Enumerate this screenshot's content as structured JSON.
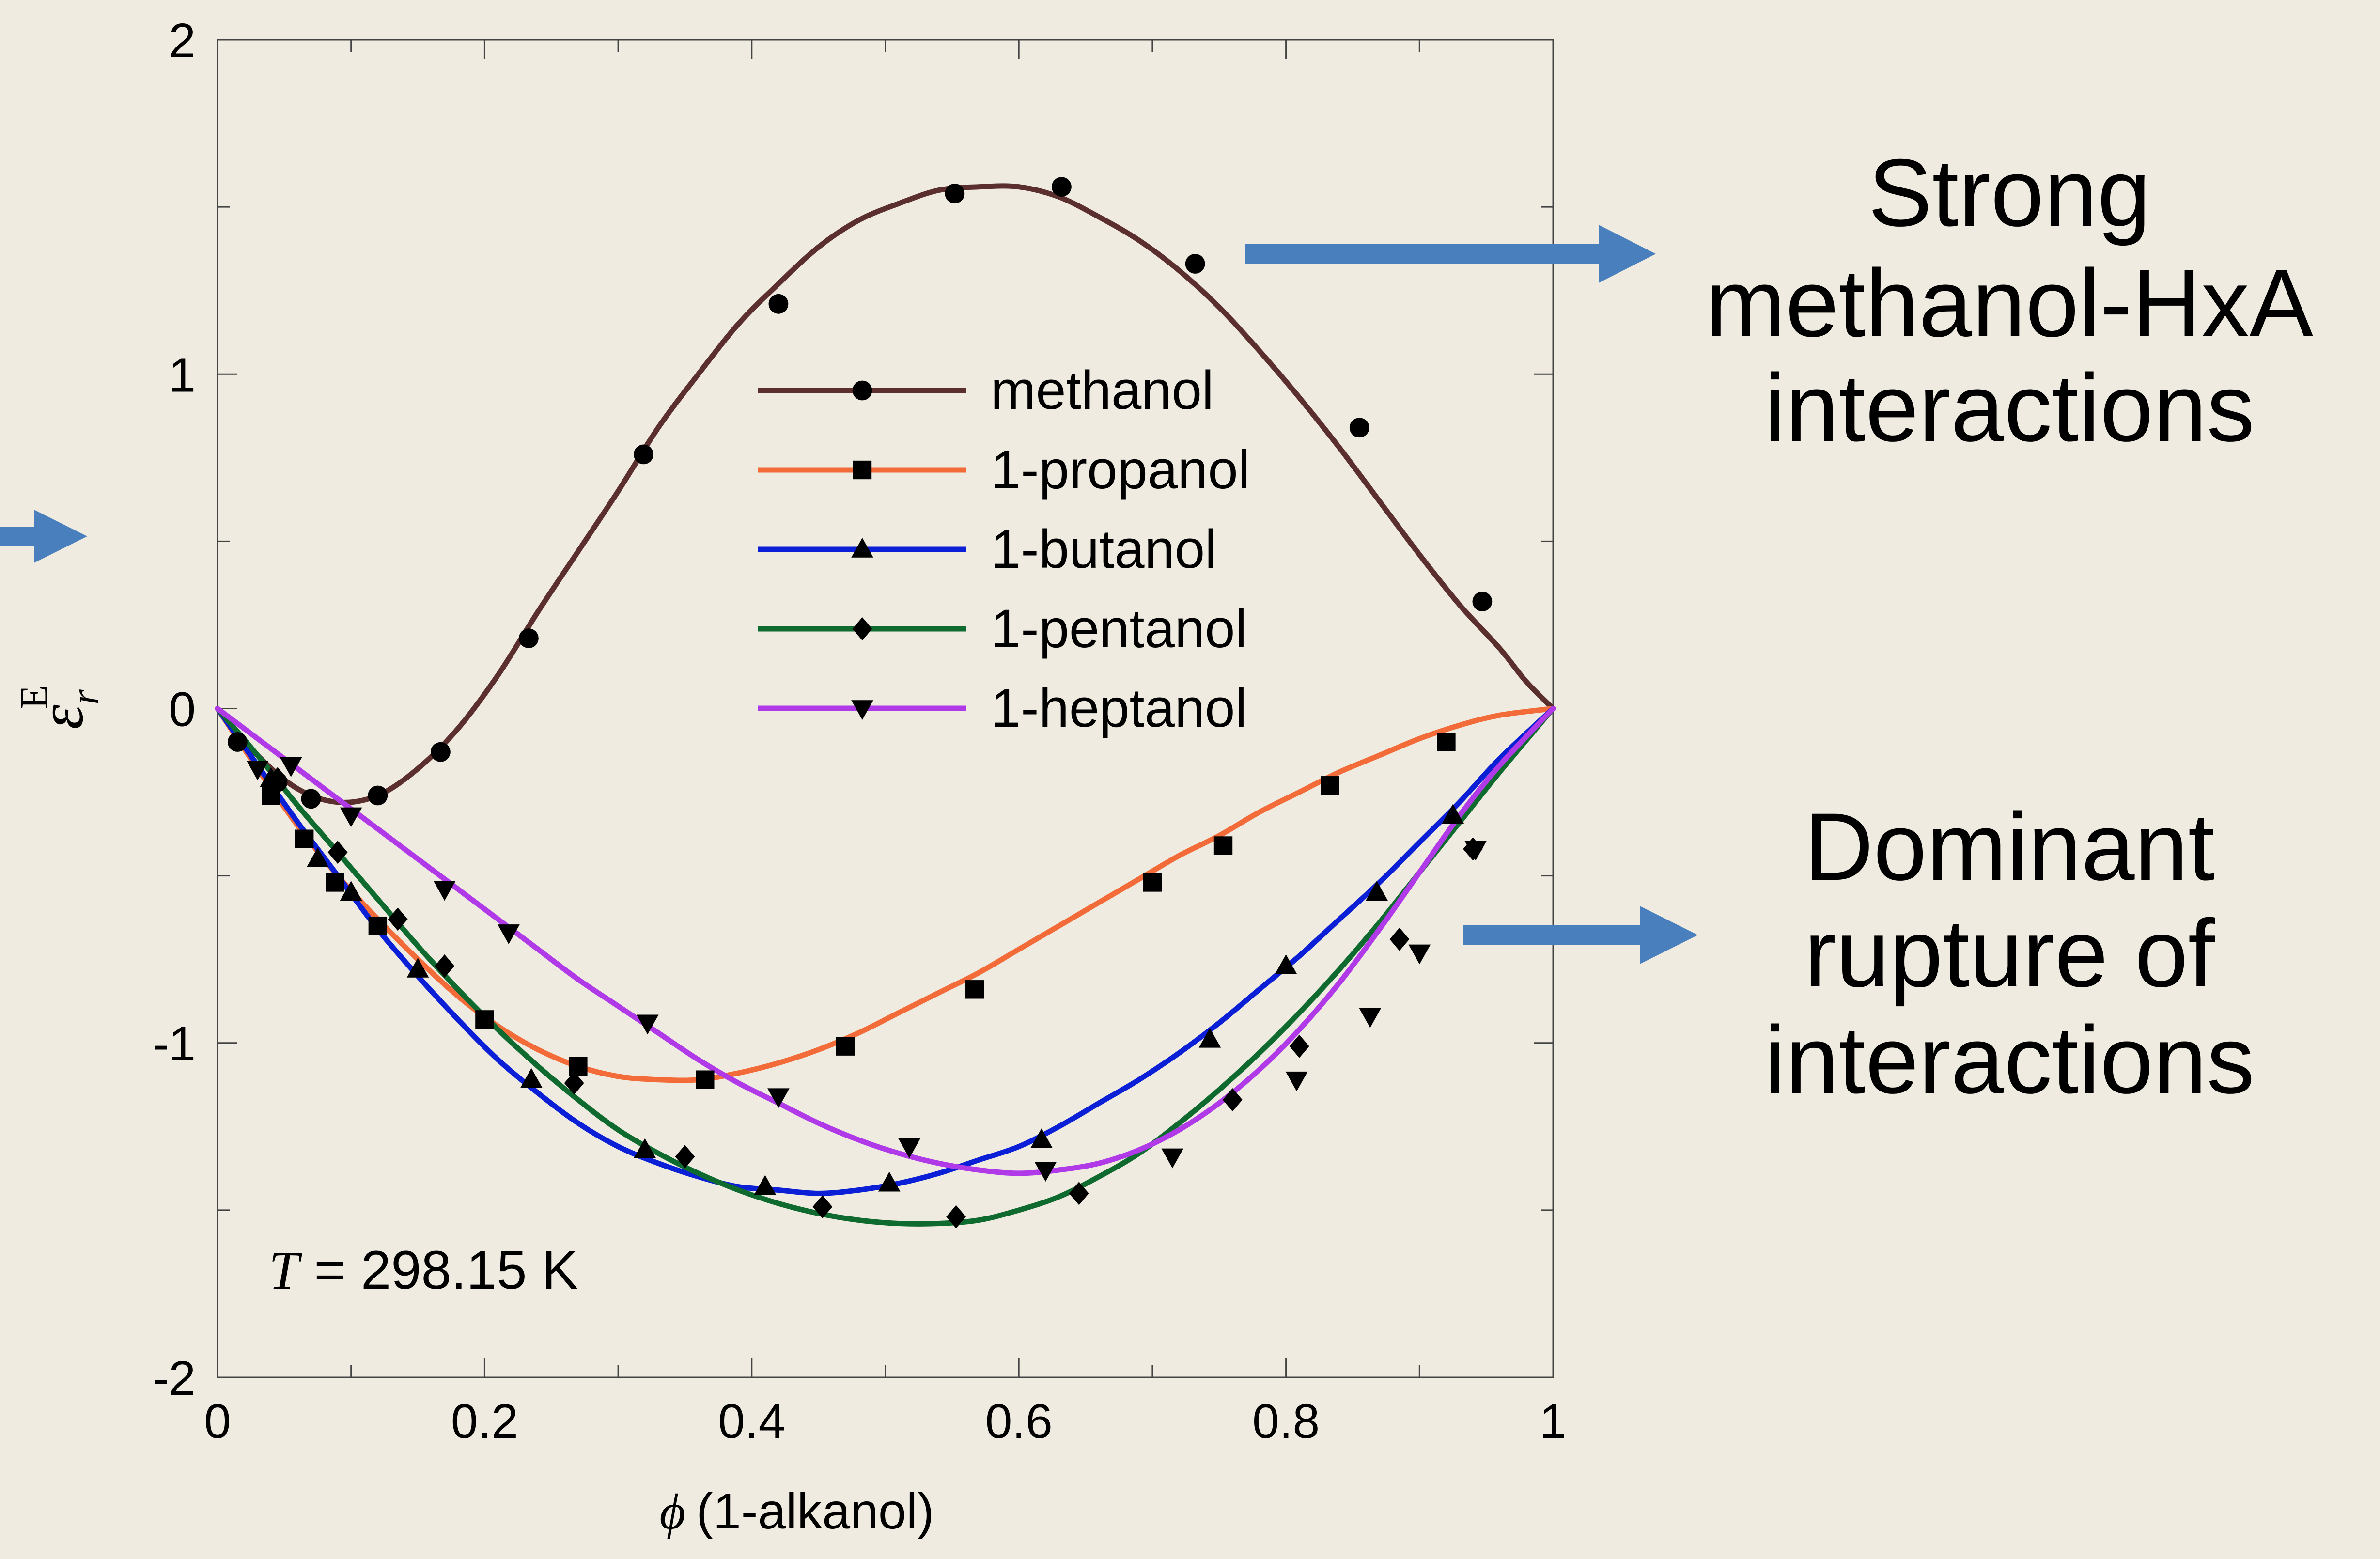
{
  "chart_data": {
    "type": "line",
    "xlabel_symbol": "ϕ",
    "xlabel": "(1-alkanol)",
    "ylabel_symbol": "ε",
    "ylabel_sup": "E",
    "ylabel_sub": "r",
    "xlim": [
      0,
      1
    ],
    "ylim": [
      -2,
      2
    ],
    "x_ticks": [
      0,
      0.2,
      0.4,
      0.6,
      0.8,
      1
    ],
    "x_tick_labels": [
      "0",
      "0.2",
      "0.4",
      "0.6",
      "0.8",
      "1"
    ],
    "y_ticks": [
      -2,
      -1,
      0,
      1,
      2
    ],
    "y_tick_labels": [
      "-2",
      "-1",
      "0",
      "1",
      "2"
    ],
    "grid": false,
    "legend_position": "upper-center",
    "annotation": {
      "symbol": "T",
      "text": " = 298.15 K"
    },
    "series": [
      {
        "name": "methanol",
        "color": "#5c2f2f",
        "marker": "circle",
        "points": [
          [
            0.015,
            -0.1
          ],
          [
            0.045,
            -0.22
          ],
          [
            0.07,
            -0.27
          ],
          [
            0.12,
            -0.26
          ],
          [
            0.167,
            -0.13
          ],
          [
            0.233,
            0.21
          ],
          [
            0.319,
            0.76
          ],
          [
            0.42,
            1.21
          ],
          [
            0.552,
            1.54
          ],
          [
            0.632,
            1.56
          ],
          [
            0.732,
            1.33
          ],
          [
            0.855,
            0.84
          ],
          [
            0.947,
            0.32
          ]
        ],
        "curve": [
          [
            0,
            0
          ],
          [
            0.03,
            -0.14
          ],
          [
            0.06,
            -0.24
          ],
          [
            0.09,
            -0.28
          ],
          [
            0.12,
            -0.26
          ],
          [
            0.15,
            -0.18
          ],
          [
            0.18,
            -0.06
          ],
          [
            0.21,
            0.1
          ],
          [
            0.24,
            0.29
          ],
          [
            0.27,
            0.47
          ],
          [
            0.3,
            0.65
          ],
          [
            0.33,
            0.84
          ],
          [
            0.36,
            1.0
          ],
          [
            0.39,
            1.15
          ],
          [
            0.42,
            1.27
          ],
          [
            0.45,
            1.38
          ],
          [
            0.48,
            1.46
          ],
          [
            0.51,
            1.51
          ],
          [
            0.54,
            1.55
          ],
          [
            0.57,
            1.56
          ],
          [
            0.6,
            1.56
          ],
          [
            0.63,
            1.53
          ],
          [
            0.66,
            1.47
          ],
          [
            0.69,
            1.4
          ],
          [
            0.72,
            1.31
          ],
          [
            0.75,
            1.2
          ],
          [
            0.78,
            1.07
          ],
          [
            0.81,
            0.93
          ],
          [
            0.84,
            0.78
          ],
          [
            0.87,
            0.62
          ],
          [
            0.9,
            0.46
          ],
          [
            0.93,
            0.31
          ],
          [
            0.96,
            0.18
          ],
          [
            0.98,
            0.08
          ],
          [
            1,
            0
          ]
        ]
      },
      {
        "name": "1-propanol",
        "color": "#f26b38",
        "marker": "square",
        "points": [
          [
            0.04,
            -0.26
          ],
          [
            0.065,
            -0.39
          ],
          [
            0.088,
            -0.52
          ],
          [
            0.12,
            -0.65
          ],
          [
            0.2,
            -0.93
          ],
          [
            0.27,
            -1.07
          ],
          [
            0.365,
            -1.11
          ],
          [
            0.47,
            -1.01
          ],
          [
            0.567,
            -0.84
          ],
          [
            0.7,
            -0.52
          ],
          [
            0.753,
            -0.41
          ],
          [
            0.833,
            -0.23
          ],
          [
            0.92,
            -0.1
          ]
        ],
        "curve": [
          [
            0,
            0
          ],
          [
            0.03,
            -0.18
          ],
          [
            0.06,
            -0.35
          ],
          [
            0.09,
            -0.5
          ],
          [
            0.12,
            -0.63
          ],
          [
            0.15,
            -0.75
          ],
          [
            0.18,
            -0.86
          ],
          [
            0.21,
            -0.95
          ],
          [
            0.24,
            -1.02
          ],
          [
            0.27,
            -1.07
          ],
          [
            0.3,
            -1.1
          ],
          [
            0.33,
            -1.11
          ],
          [
            0.36,
            -1.11
          ],
          [
            0.39,
            -1.09
          ],
          [
            0.42,
            -1.06
          ],
          [
            0.45,
            -1.02
          ],
          [
            0.48,
            -0.97
          ],
          [
            0.51,
            -0.91
          ],
          [
            0.54,
            -0.85
          ],
          [
            0.57,
            -0.79
          ],
          [
            0.6,
            -0.72
          ],
          [
            0.63,
            -0.65
          ],
          [
            0.66,
            -0.58
          ],
          [
            0.69,
            -0.51
          ],
          [
            0.72,
            -0.44
          ],
          [
            0.75,
            -0.38
          ],
          [
            0.78,
            -0.31
          ],
          [
            0.81,
            -0.25
          ],
          [
            0.84,
            -0.19
          ],
          [
            0.87,
            -0.14
          ],
          [
            0.9,
            -0.09
          ],
          [
            0.93,
            -0.05
          ],
          [
            0.96,
            -0.02
          ],
          [
            1,
            0
          ]
        ]
      },
      {
        "name": "1-butanol",
        "color": "#0a1fd6",
        "marker": "triangle-up",
        "points": [
          [
            0.04,
            -0.21
          ],
          [
            0.075,
            -0.45
          ],
          [
            0.1,
            -0.55
          ],
          [
            0.15,
            -0.78
          ],
          [
            0.235,
            -1.11
          ],
          [
            0.32,
            -1.32
          ],
          [
            0.41,
            -1.43
          ],
          [
            0.503,
            -1.42
          ],
          [
            0.617,
            -1.29
          ],
          [
            0.743,
            -0.99
          ],
          [
            0.8,
            -0.77
          ],
          [
            0.868,
            -0.55
          ],
          [
            0.925,
            -0.32
          ]
        ],
        "curve": [
          [
            0,
            0
          ],
          [
            0.03,
            -0.17
          ],
          [
            0.06,
            -0.34
          ],
          [
            0.09,
            -0.5
          ],
          [
            0.12,
            -0.66
          ],
          [
            0.15,
            -0.8
          ],
          [
            0.18,
            -0.93
          ],
          [
            0.21,
            -1.05
          ],
          [
            0.24,
            -1.15
          ],
          [
            0.27,
            -1.24
          ],
          [
            0.3,
            -1.31
          ],
          [
            0.33,
            -1.36
          ],
          [
            0.36,
            -1.4
          ],
          [
            0.39,
            -1.43
          ],
          [
            0.42,
            -1.44
          ],
          [
            0.45,
            -1.45
          ],
          [
            0.48,
            -1.44
          ],
          [
            0.51,
            -1.42
          ],
          [
            0.54,
            -1.39
          ],
          [
            0.57,
            -1.35
          ],
          [
            0.6,
            -1.31
          ],
          [
            0.63,
            -1.25
          ],
          [
            0.66,
            -1.18
          ],
          [
            0.69,
            -1.11
          ],
          [
            0.72,
            -1.03
          ],
          [
            0.75,
            -0.94
          ],
          [
            0.78,
            -0.84
          ],
          [
            0.81,
            -0.74
          ],
          [
            0.84,
            -0.63
          ],
          [
            0.87,
            -0.52
          ],
          [
            0.9,
            -0.4
          ],
          [
            0.93,
            -0.28
          ],
          [
            0.96,
            -0.15
          ],
          [
            1,
            0
          ]
        ]
      },
      {
        "name": "1-pentanol",
        "color": "#0e6a2e",
        "marker": "diamond",
        "points": [
          [
            0.045,
            -0.21
          ],
          [
            0.09,
            -0.43
          ],
          [
            0.135,
            -0.63
          ],
          [
            0.17,
            -0.77
          ],
          [
            0.267,
            -1.12
          ],
          [
            0.35,
            -1.34
          ],
          [
            0.453,
            -1.49
          ],
          [
            0.553,
            -1.52
          ],
          [
            0.645,
            -1.45
          ],
          [
            0.76,
            -1.17
          ],
          [
            0.81,
            -1.01
          ],
          [
            0.885,
            -0.69
          ],
          [
            0.94,
            -0.42
          ]
        ],
        "curve": [
          [
            0,
            0
          ],
          [
            0.03,
            -0.14
          ],
          [
            0.06,
            -0.29
          ],
          [
            0.09,
            -0.43
          ],
          [
            0.12,
            -0.57
          ],
          [
            0.15,
            -0.71
          ],
          [
            0.18,
            -0.84
          ],
          [
            0.21,
            -0.96
          ],
          [
            0.24,
            -1.07
          ],
          [
            0.27,
            -1.17
          ],
          [
            0.3,
            -1.26
          ],
          [
            0.33,
            -1.33
          ],
          [
            0.36,
            -1.39
          ],
          [
            0.39,
            -1.44
          ],
          [
            0.42,
            -1.48
          ],
          [
            0.45,
            -1.51
          ],
          [
            0.48,
            -1.53
          ],
          [
            0.51,
            -1.54
          ],
          [
            0.54,
            -1.54
          ],
          [
            0.57,
            -1.53
          ],
          [
            0.6,
            -1.5
          ],
          [
            0.63,
            -1.46
          ],
          [
            0.66,
            -1.4
          ],
          [
            0.69,
            -1.33
          ],
          [
            0.72,
            -1.24
          ],
          [
            0.75,
            -1.14
          ],
          [
            0.78,
            -1.03
          ],
          [
            0.81,
            -0.91
          ],
          [
            0.84,
            -0.78
          ],
          [
            0.87,
            -0.64
          ],
          [
            0.9,
            -0.49
          ],
          [
            0.93,
            -0.34
          ],
          [
            0.96,
            -0.19
          ],
          [
            1,
            0
          ]
        ]
      },
      {
        "name": "1-heptanol",
        "color": "#b03ae8",
        "marker": "triangle-down",
        "points": [
          [
            0.03,
            -0.18
          ],
          [
            0.055,
            -0.17
          ],
          [
            0.1,
            -0.32
          ],
          [
            0.17,
            -0.54
          ],
          [
            0.218,
            -0.67
          ],
          [
            0.322,
            -0.94
          ],
          [
            0.42,
            -1.16
          ],
          [
            0.518,
            -1.31
          ],
          [
            0.62,
            -1.38
          ],
          [
            0.715,
            -1.34
          ],
          [
            0.808,
            -1.11
          ],
          [
            0.863,
            -0.92
          ],
          [
            0.9,
            -0.73
          ],
          [
            0.942,
            -0.42
          ]
        ],
        "curve": [
          [
            0,
            0
          ],
          [
            0.03,
            -0.09
          ],
          [
            0.06,
            -0.18
          ],
          [
            0.09,
            -0.27
          ],
          [
            0.12,
            -0.36
          ],
          [
            0.15,
            -0.45
          ],
          [
            0.18,
            -0.54
          ],
          [
            0.21,
            -0.63
          ],
          [
            0.24,
            -0.72
          ],
          [
            0.27,
            -0.81
          ],
          [
            0.3,
            -0.89
          ],
          [
            0.33,
            -0.97
          ],
          [
            0.36,
            -1.05
          ],
          [
            0.39,
            -1.12
          ],
          [
            0.42,
            -1.18
          ],
          [
            0.45,
            -1.24
          ],
          [
            0.48,
            -1.29
          ],
          [
            0.51,
            -1.33
          ],
          [
            0.54,
            -1.36
          ],
          [
            0.57,
            -1.38
          ],
          [
            0.6,
            -1.39
          ],
          [
            0.63,
            -1.38
          ],
          [
            0.66,
            -1.36
          ],
          [
            0.69,
            -1.32
          ],
          [
            0.72,
            -1.26
          ],
          [
            0.75,
            -1.18
          ],
          [
            0.78,
            -1.08
          ],
          [
            0.81,
            -0.96
          ],
          [
            0.84,
            -0.82
          ],
          [
            0.87,
            -0.66
          ],
          [
            0.9,
            -0.49
          ],
          [
            0.93,
            -0.32
          ],
          [
            0.96,
            -0.17
          ],
          [
            1,
            0
          ]
        ]
      }
    ]
  },
  "annotations": {
    "arrow_color": "#4a7fbd",
    "strong": [
      "Strong",
      "methanol-HxA",
      "interactions"
    ],
    "dominant": [
      "Dominant",
      "rupture of",
      "interactions"
    ]
  }
}
